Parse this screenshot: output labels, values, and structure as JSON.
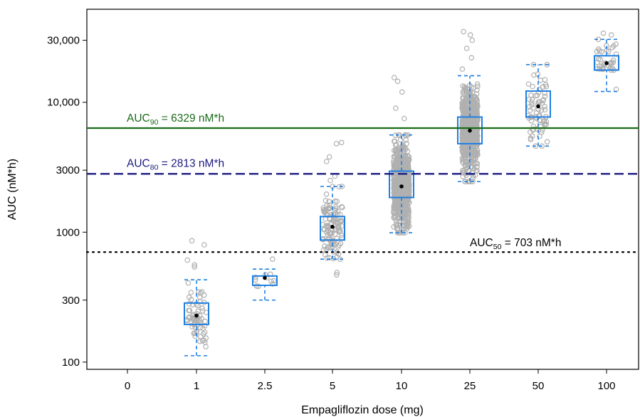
{
  "chart_data": {
    "type": "box",
    "xlabel": "Empagliflozin dose (mg)",
    "ylabel": "AUC (nM*h)",
    "y_scale": "log",
    "ylim": [
      88,
      52000
    ],
    "grid": false,
    "x_categories": [
      "0",
      "1",
      "2.5",
      "5",
      "10",
      "25",
      "50",
      "100"
    ],
    "y_ticks": [
      {
        "value": 100,
        "label": "100"
      },
      {
        "value": 300,
        "label": "300"
      },
      {
        "value": 1000,
        "label": "1000"
      },
      {
        "value": 3000,
        "label": "3000"
      },
      {
        "value": 10000,
        "label": "10,000"
      },
      {
        "value": 30000,
        "label": "30,000"
      }
    ],
    "reference_lines": [
      {
        "key": "auc90",
        "sub": "90",
        "value": 6329,
        "label_rest": " = 6329 nM*h",
        "color": "#1a6b1a",
        "style": "solid"
      },
      {
        "key": "auc80",
        "sub": "80",
        "value": 2813,
        "label_rest": " = 2813 nM*h",
        "color": "#1a1a80",
        "style": "dashed"
      },
      {
        "key": "auc50",
        "sub": "50",
        "value": 703,
        "label_rest": " = 703 nM*h",
        "color": "#000000",
        "style": "dotted"
      }
    ],
    "label_prefix": "AUC",
    "box_color": "#1e7fe0",
    "point_color": "#b0b0b0",
    "groups": [
      {
        "dose": "1",
        "whisker_low": 112,
        "q1": 195,
        "median": 230,
        "q3": 285,
        "whisker_high": 430,
        "mean": 228,
        "n": 70,
        "outliers": [
          800,
          860,
          610,
          560,
          540
        ]
      },
      {
        "dose": "2.5",
        "whisker_low": 300,
        "q1": 390,
        "median": 430,
        "q3": 460,
        "whisker_high": 520,
        "mean": 445,
        "n": 10,
        "outliers": [
          620
        ]
      },
      {
        "dose": "5",
        "whisker_low": 620,
        "q1": 870,
        "median": 1080,
        "q3": 1320,
        "whisker_high": 2250,
        "mean": 1100,
        "n": 120,
        "outliers": [
          470,
          490,
          3500,
          3800,
          4800,
          4900,
          2700,
          2500
        ]
      },
      {
        "dose": "10",
        "whisker_low": 990,
        "q1": 1850,
        "median": 2300,
        "q3": 2950,
        "whisker_high": 5600,
        "mean": 2250,
        "n": 700,
        "outliers": [
          15500,
          14500,
          12000,
          9000,
          7500
        ]
      },
      {
        "dose": "25",
        "whisker_low": 2450,
        "q1": 4800,
        "median": 6000,
        "q3": 7700,
        "whisker_high": 16000,
        "mean": 6050,
        "n": 700,
        "outliers": [
          35000,
          33000,
          30000,
          26000,
          22000,
          18000
        ]
      },
      {
        "dose": "50",
        "whisker_low": 4600,
        "q1": 7700,
        "median": 9300,
        "q3": 12200,
        "whisker_high": 19500,
        "mean": 9300,
        "n": 70,
        "outliers": []
      },
      {
        "dose": "100",
        "whisker_low": 12100,
        "q1": 17700,
        "median": 20000,
        "q3": 22800,
        "whisker_high": 30500,
        "mean": 20000,
        "n": 35,
        "outliers": [
          34000,
          33000
        ]
      }
    ]
  }
}
